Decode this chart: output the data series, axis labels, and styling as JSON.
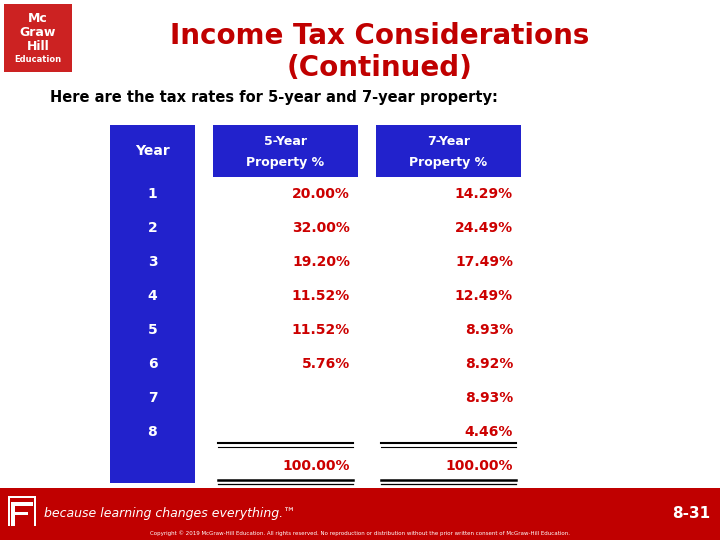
{
  "title_line1": "Income Tax Considerations",
  "title_line2": "(Continued)",
  "subtitle": "Here are the tax rates for 5-year and 7-year property:",
  "title_color": "#c00000",
  "subtitle_color": "#000000",
  "bg_color": "#ffffff",
  "footer_bg": "#c00000",
  "footer_text": "because learning changes everything.™",
  "footer_page": "8-31",
  "col_header_bg": "#2222cc",
  "year_col_bg": "#2222cc",
  "data_text_color": "#cc0000",
  "years": [
    1,
    2,
    3,
    4,
    5,
    6,
    7,
    8
  ],
  "five_year": [
    "20.00%",
    "32.00%",
    "19.20%",
    "11.52%",
    "11.52%",
    "5.76%",
    "",
    ""
  ],
  "seven_year": [
    "14.29%",
    "24.49%",
    "17.49%",
    "12.49%",
    "8.93%",
    "8.92%",
    "8.93%",
    "4.46%"
  ],
  "total_five": "100.00%",
  "total_seven": "100.00%",
  "col1_header": "Year",
  "col2_header1": "5-Year",
  "col2_header2": "Property %",
  "col3_header1": "7-Year",
  "col3_header2": "Property %",
  "logo_bg": "#cc2222",
  "logo_lines": [
    "Mc",
    "Graw",
    "Hill",
    "Education"
  ],
  "copyright": "Copyright © 2019 McGraw-Hill Education. All rights reserved. No reproduction or distribution without the prior written consent of McGraw-Hill Education."
}
